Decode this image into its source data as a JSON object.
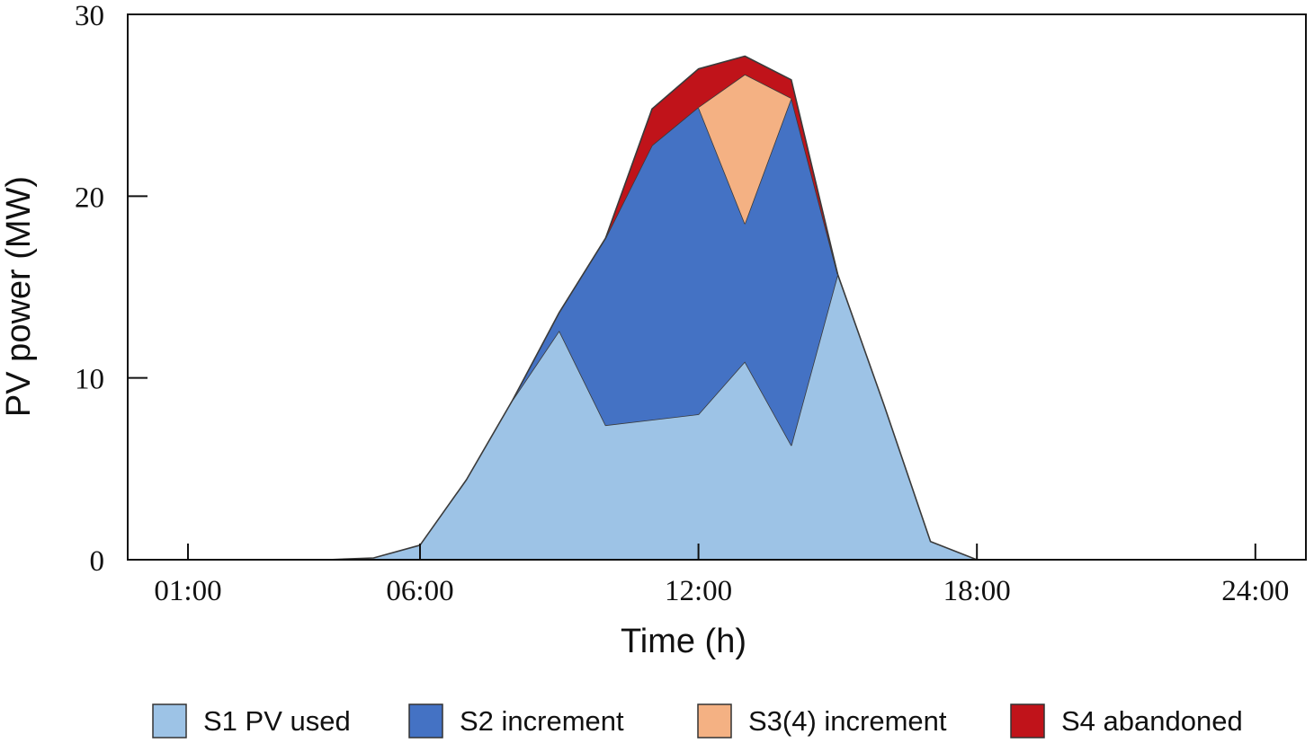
{
  "chart_data": {
    "type": "area",
    "stacked": true,
    "title": "",
    "xlabel": "Time (h)",
    "ylabel": "PV power (MW)",
    "ylim": [
      0,
      30
    ],
    "yticks": [
      0,
      10,
      20,
      30
    ],
    "xlim": [
      0,
      24
    ],
    "xticks": [
      {
        "value": 1,
        "label": "01:00"
      },
      {
        "value": 6,
        "label": "06:00"
      },
      {
        "value": 12,
        "label": "12:00"
      },
      {
        "value": 18,
        "label": "18:00"
      },
      {
        "value": 24,
        "label": "24:00"
      }
    ],
    "x": [
      0,
      1,
      2,
      3,
      4,
      5,
      6,
      7,
      8,
      9,
      10,
      11,
      12,
      13,
      14,
      15,
      16,
      17,
      18,
      19,
      20,
      21,
      22,
      23,
      24
    ],
    "series": [
      {
        "name": "S1 PV used",
        "color": "#9DC3E6",
        "values": [
          0,
          0,
          0,
          0,
          0,
          0.1,
          0.8,
          4.4,
          8.8,
          12.6,
          7.4,
          7.7,
          8,
          10.9,
          6.3,
          15.7,
          8.5,
          1,
          0,
          0,
          0,
          0,
          0,
          0,
          0
        ]
      },
      {
        "name": "S2 increment",
        "color": "#4472C4",
        "values": [
          0,
          0,
          0,
          0,
          0,
          0,
          0,
          0,
          0,
          1,
          10.3,
          15.1,
          16.9,
          7.6,
          19.1,
          0,
          0,
          0,
          0,
          0,
          0,
          0,
          0,
          0,
          0
        ]
      },
      {
        "name": "S3(4) increment",
        "color": "#F4B183",
        "values": [
          0,
          0,
          0,
          0,
          0,
          0,
          0,
          0,
          0,
          0,
          0,
          0,
          0,
          8.2,
          0,
          0,
          0,
          0,
          0,
          0,
          0,
          0,
          0,
          0,
          0
        ]
      },
      {
        "name": "S4 abandoned",
        "color": "#C0131A",
        "values": [
          0,
          0,
          0,
          0,
          0,
          0,
          0,
          0,
          0,
          0,
          0,
          2,
          2.1,
          1,
          1,
          0,
          0,
          0,
          0,
          0,
          0,
          0,
          0,
          0,
          0
        ]
      }
    ],
    "legend_position": "bottom"
  }
}
